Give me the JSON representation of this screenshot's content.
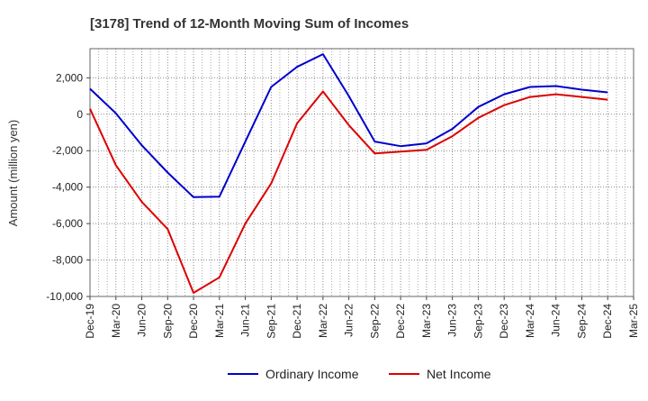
{
  "chart_data": {
    "type": "line",
    "title": "[3178]  Trend of 12-Month Moving Sum of Incomes",
    "ylabel": "Amount (million yen)",
    "xlabel": "",
    "ylim": [
      -10000,
      3600
    ],
    "yticks": [
      2000,
      0,
      -2000,
      -4000,
      -6000,
      -8000,
      -10000
    ],
    "ytick_labels": [
      "2,000",
      "0",
      "-2,000",
      "-4,000",
      "-6,000",
      "-8,000",
      "-10,000"
    ],
    "categories": [
      "Dec-19",
      "Mar-20",
      "Jun-20",
      "Sep-20",
      "Dec-20",
      "Mar-21",
      "Jun-21",
      "Sep-21",
      "Dec-21",
      "Mar-22",
      "Jun-22",
      "Sep-22",
      "Dec-22",
      "Mar-23",
      "Jun-23",
      "Sep-23",
      "Dec-23",
      "Mar-24",
      "Jun-24",
      "Sep-24",
      "Dec-24",
      "Mar-25"
    ],
    "series": [
      {
        "name": "Ordinary Income",
        "color": "#0000cc",
        "values": [
          1400,
          50,
          -1700,
          -3200,
          -4550,
          -4520,
          -1500,
          1500,
          2600,
          3300,
          1000,
          -1500,
          -1750,
          -1600,
          -800,
          400,
          1100,
          1500,
          1550,
          1350,
          1200,
          null
        ]
      },
      {
        "name": "Net Income",
        "color": "#dd0000",
        "values": [
          300,
          -2800,
          -4800,
          -6300,
          -9800,
          -8950,
          -6000,
          -3800,
          -500,
          1250,
          -600,
          -2150,
          -2050,
          -1950,
          -1200,
          -200,
          500,
          950,
          1100,
          950,
          800,
          null
        ]
      }
    ],
    "legend": [
      "Ordinary Income",
      "Net Income"
    ],
    "legend_position": "bottom",
    "grid": true
  }
}
